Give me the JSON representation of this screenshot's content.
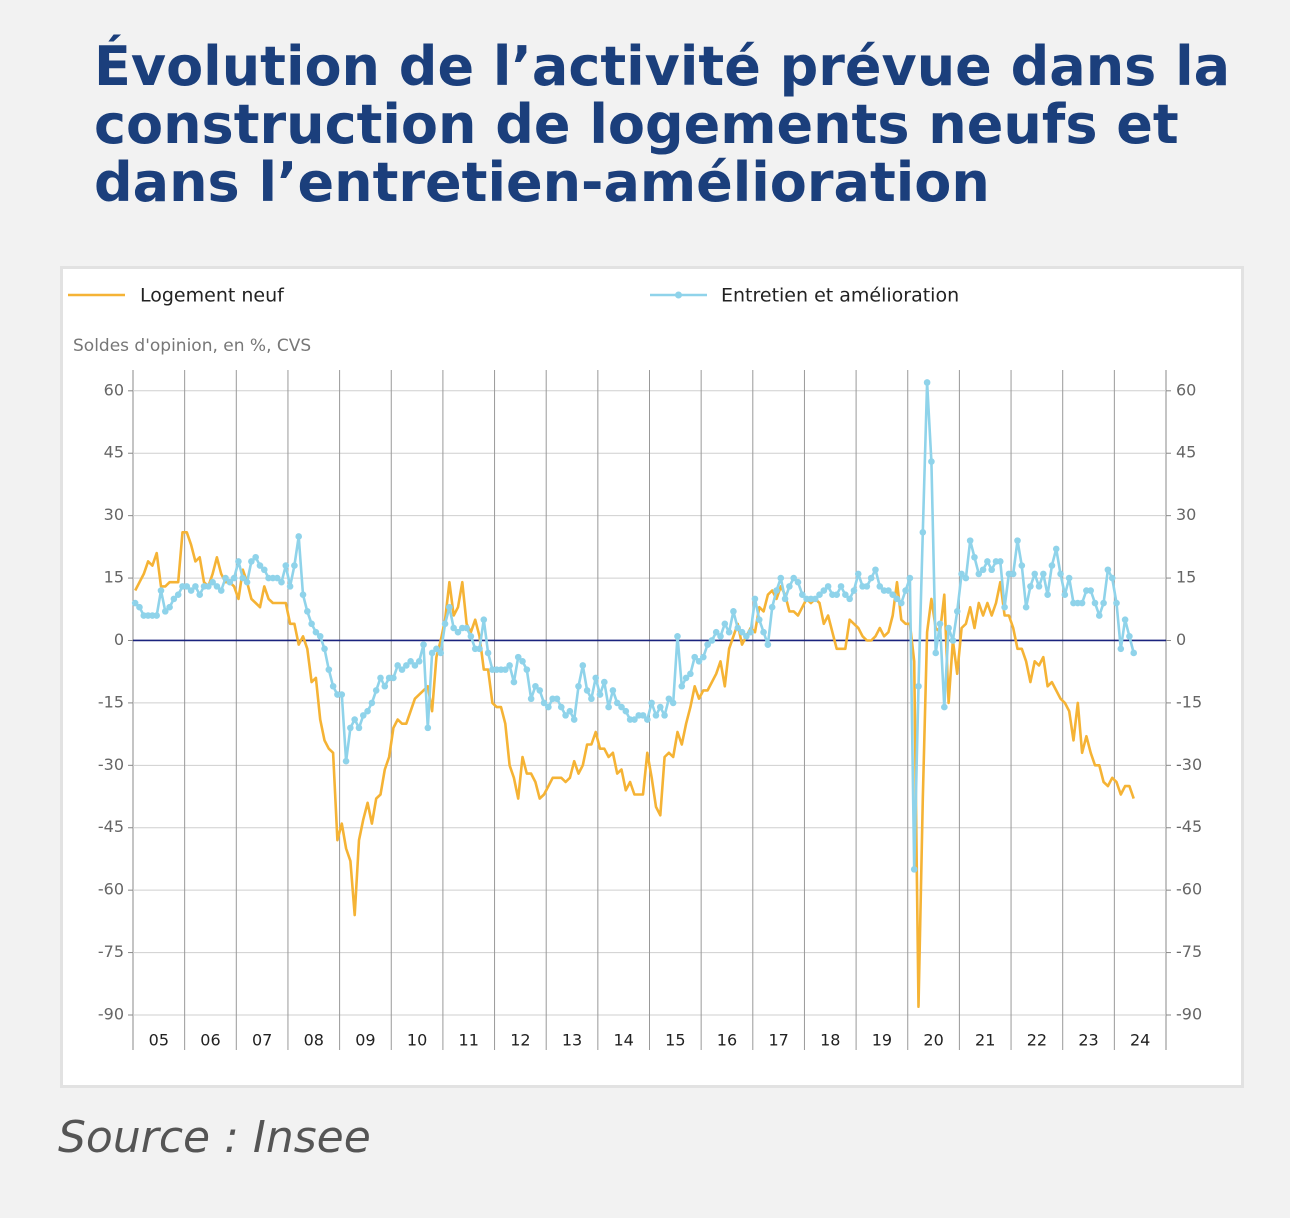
{
  "chart_data": {
    "type": "line",
    "title": "Évolution de l’activité prévue dans la construction de logements neufs et dans l’entretien-amélioration",
    "y_label": "Soldes d'opinion, en %, CVS",
    "source": "Source : Insee",
    "categories": [
      "05",
      "06",
      "07",
      "08",
      "09",
      "10",
      "11",
      "12",
      "13",
      "14",
      "15",
      "16",
      "17",
      "18",
      "19",
      "20",
      "21",
      "22",
      "23",
      "24"
    ],
    "ylim": [
      -90,
      65
    ],
    "yticks": [
      60,
      45,
      30,
      15,
      0,
      -15,
      -30,
      -45,
      -60,
      -75,
      -90
    ],
    "y2lim": [
      -90,
      65
    ],
    "y2ticks": [
      60,
      45,
      30,
      15,
      0,
      -15,
      -30,
      -45,
      -60,
      -75,
      -90
    ],
    "grid": true,
    "zero_line_color": "#1a237e",
    "series": [
      {
        "name": "Logement neuf",
        "color": "#f5b335",
        "markers": false,
        "values": [
          [
            12,
            14,
            16,
            19,
            18,
            21,
            13,
            13,
            14,
            14,
            14,
            26
          ],
          [
            26,
            23,
            19,
            20,
            14,
            13,
            16,
            20,
            16,
            14,
            14,
            13
          ],
          [
            10,
            17,
            14,
            10,
            9,
            8,
            13,
            10,
            9,
            9,
            9,
            9
          ],
          [
            4,
            4,
            -1,
            1,
            -2,
            -10,
            -9,
            -19,
            -24,
            -26,
            -27,
            -48
          ],
          [
            -44,
            -50,
            -53,
            -66,
            -48,
            -43,
            -39,
            -44,
            -38,
            -37,
            -31,
            -28
          ],
          [
            -21,
            -19,
            -20,
            -20,
            -17,
            -14,
            -13,
            -12,
            -11,
            -17,
            -4,
            0
          ],
          [
            5,
            14,
            6,
            8,
            14,
            4,
            2,
            5,
            1,
            -7,
            -7,
            -15
          ],
          [
            -16,
            -16,
            -20,
            -30,
            -33,
            -38,
            -28,
            -32,
            -32,
            -34,
            -38,
            -37
          ],
          [
            -35,
            -33,
            -33,
            -33,
            -34,
            -33,
            -29,
            -32,
            -30,
            -25,
            -25,
            -22
          ],
          [
            -26,
            -26,
            -28,
            -27,
            -32,
            -31,
            -36,
            -34,
            -37,
            -37,
            -37,
            -27
          ],
          [
            -33,
            -40,
            -42,
            -28,
            -27,
            -28,
            -22,
            -25,
            -20,
            -16,
            -11,
            -14
          ],
          [
            -12,
            -12,
            -10,
            -8,
            -5,
            -11,
            -2,
            1,
            4,
            -1,
            1,
            3
          ],
          [
            2,
            8,
            7,
            11,
            12,
            10,
            13,
            11,
            7,
            7,
            6,
            8
          ],
          [
            10,
            9,
            10,
            9,
            4,
            6,
            2,
            -2,
            -2,
            -2,
            5,
            4
          ],
          [
            3,
            1,
            0,
            0,
            1,
            3,
            1,
            2,
            6,
            14,
            5,
            4
          ],
          [
            4,
            -5,
            -88,
            -38,
            2,
            10,
            3,
            2,
            11,
            -15,
            0,
            -8
          ],
          [
            3,
            4,
            8,
            3,
            9,
            6,
            9,
            6,
            9,
            14,
            6,
            6
          ],
          [
            3,
            -2,
            -2,
            -5,
            -10,
            -5,
            -6,
            -4,
            -11,
            -10,
            -12,
            -14
          ],
          [
            -15,
            -17,
            -24,
            -15,
            -27,
            -23,
            -27,
            -30,
            -30,
            -34,
            -35,
            -33
          ],
          [
            -34,
            -37,
            -35,
            -35,
            -38
          ]
        ]
      },
      {
        "name": "Entretien et amélioration",
        "color": "#8fd3ea",
        "markers": true,
        "values": [
          [
            9,
            8,
            6,
            6,
            6,
            6,
            12,
            7,
            8,
            10,
            11,
            13
          ],
          [
            13,
            12,
            13,
            11,
            13,
            13,
            14,
            13,
            12,
            15,
            14,
            15
          ],
          [
            19,
            15,
            14,
            19,
            20,
            18,
            17,
            15,
            15,
            15,
            14,
            18
          ],
          [
            13,
            18,
            25,
            11,
            7,
            4,
            2,
            1,
            -2,
            -7,
            -11,
            -13
          ],
          [
            -13,
            -29,
            -21,
            -19,
            -21,
            -18,
            -17,
            -15,
            -12,
            -9,
            -11,
            -9
          ],
          [
            -9,
            -6,
            -7,
            -6,
            -5,
            -6,
            -5,
            -1,
            -21,
            -3,
            -2,
            -3
          ],
          [
            4,
            8,
            3,
            2,
            3,
            3,
            1,
            -2,
            -2,
            5,
            -3,
            -7
          ],
          [
            -7,
            -7,
            -7,
            -6,
            -10,
            -4,
            -5,
            -7,
            -14,
            -11,
            -12,
            -15
          ],
          [
            -16,
            -14,
            -14,
            -16,
            -18,
            -17,
            -19,
            -11,
            -6,
            -12,
            -14,
            -9
          ],
          [
            -13,
            -10,
            -16,
            -12,
            -15,
            -16,
            -17,
            -19,
            -19,
            -18,
            -18,
            -19
          ],
          [
            -15,
            -18,
            -16,
            -18,
            -14,
            -15,
            1,
            -11,
            -9,
            -8,
            -4,
            -5
          ],
          [
            -4,
            -1,
            0,
            2,
            1,
            4,
            2,
            7,
            3,
            2,
            1,
            2
          ],
          [
            10,
            5,
            2,
            -1,
            8,
            12,
            15,
            10,
            13,
            15,
            14,
            11
          ],
          [
            10,
            10,
            10,
            11,
            12,
            13,
            11,
            11,
            13,
            11,
            10,
            12
          ],
          [
            16,
            13,
            13,
            15,
            17,
            13,
            12,
            12,
            11,
            10,
            9,
            12
          ],
          [
            15,
            -55,
            -11,
            26,
            62,
            43,
            -3,
            4,
            -16,
            3,
            0,
            7
          ],
          [
            16,
            15,
            24,
            20,
            16,
            17,
            19,
            17,
            19,
            19,
            8,
            16
          ],
          [
            16,
            24,
            18,
            8,
            13,
            16,
            13,
            16,
            11,
            18,
            22,
            16
          ],
          [
            11,
            15,
            9,
            9,
            9,
            12,
            12,
            9,
            6,
            9,
            17,
            15
          ],
          [
            9,
            -2,
            5,
            1,
            -3
          ]
        ]
      }
    ]
  }
}
